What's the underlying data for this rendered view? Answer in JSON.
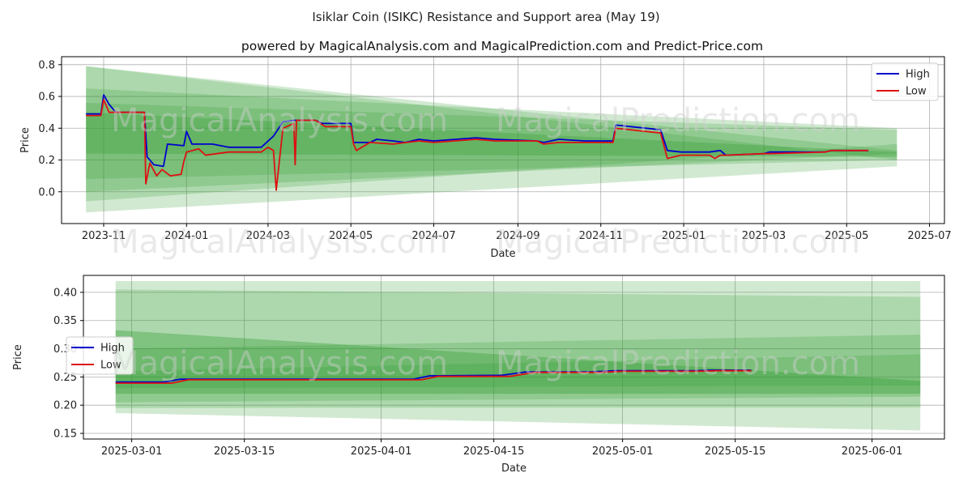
{
  "title": "Isiklar Coin (ISIKC) Resistance and Support area (May 19)",
  "subtitle": "powered by MagicalAnalysis.com and MagicalPrediction.com and Predict-Price.com",
  "watermarks": [
    "MagicalAnalysis.com",
    "MagicalPrediction.com"
  ],
  "colors": {
    "high": "#0000cc",
    "low": "#dd1111",
    "band": "#2e9a2e",
    "grid": "#b0b0b0"
  },
  "chart_data": [
    {
      "type": "line",
      "xlabel": "Date",
      "ylabel": "Price",
      "grid": true,
      "legend_position": "top-right",
      "xlim": [
        "2023-10-01",
        "2025-07-12"
      ],
      "ylim": [
        -0.2,
        0.85
      ],
      "x_ticks": [
        "2023-11",
        "2024-01",
        "2024-03",
        "2024-05",
        "2024-07",
        "2024-09",
        "2024-11",
        "2025-01",
        "2025-03",
        "2025-05",
        "2025-07"
      ],
      "y_ticks": [
        "0.0",
        "0.2",
        "0.4",
        "0.6",
        "0.8"
      ],
      "series": [
        {
          "name": "High",
          "color": "#0000cc",
          "points": [
            [
              "2023-10-19",
              0.49
            ],
            [
              "2023-10-30",
              0.49
            ],
            [
              "2023-11-01",
              0.61
            ],
            [
              "2023-11-05",
              0.55
            ],
            [
              "2023-11-10",
              0.5
            ],
            [
              "2023-12-01",
              0.5
            ],
            [
              "2023-12-03",
              0.22
            ],
            [
              "2023-12-08",
              0.17
            ],
            [
              "2023-12-15",
              0.16
            ],
            [
              "2023-12-18",
              0.3
            ],
            [
              "2023-12-30",
              0.29
            ],
            [
              "2024-01-01",
              0.38
            ],
            [
              "2024-01-05",
              0.3
            ],
            [
              "2024-01-20",
              0.3
            ],
            [
              "2024-02-01",
              0.28
            ],
            [
              "2024-02-25",
              0.28
            ],
            [
              "2024-03-05",
              0.35
            ],
            [
              "2024-03-12",
              0.44
            ],
            [
              "2024-03-20",
              0.45
            ],
            [
              "2024-04-05",
              0.45
            ],
            [
              "2024-04-10",
              0.43
            ],
            [
              "2024-05-01",
              0.43
            ],
            [
              "2024-05-03",
              0.31
            ],
            [
              "2024-05-15",
              0.31
            ],
            [
              "2024-05-20",
              0.33
            ],
            [
              "2024-06-01",
              0.32
            ],
            [
              "2024-06-10",
              0.31
            ],
            [
              "2024-06-20",
              0.33
            ],
            [
              "2024-07-01",
              0.32
            ],
            [
              "2024-08-01",
              0.34
            ],
            [
              "2024-08-15",
              0.33
            ],
            [
              "2024-09-15",
              0.32
            ],
            [
              "2024-09-20",
              0.31
            ],
            [
              "2024-10-01",
              0.33
            ],
            [
              "2024-10-20",
              0.32
            ],
            [
              "2024-11-10",
              0.32
            ],
            [
              "2024-11-12",
              0.42
            ],
            [
              "2024-12-15",
              0.39
            ],
            [
              "2024-12-20",
              0.26
            ],
            [
              "2024-12-30",
              0.25
            ],
            [
              "2025-01-20",
              0.25
            ],
            [
              "2025-01-28",
              0.26
            ],
            [
              "2025-02-01",
              0.23
            ],
            [
              "2025-03-01",
              0.24
            ],
            [
              "2025-03-05",
              0.25
            ],
            [
              "2025-04-15",
              0.25
            ],
            [
              "2025-04-20",
              0.26
            ],
            [
              "2025-05-17",
              0.26
            ]
          ]
        },
        {
          "name": "Low",
          "color": "#dd1111",
          "points": [
            [
              "2023-10-19",
              0.48
            ],
            [
              "2023-10-30",
              0.48
            ],
            [
              "2023-11-01",
              0.58
            ],
            [
              "2023-11-05",
              0.5
            ],
            [
              "2023-12-01",
              0.5
            ],
            [
              "2023-12-02",
              0.05
            ],
            [
              "2023-12-05",
              0.18
            ],
            [
              "2023-12-10",
              0.1
            ],
            [
              "2023-12-14",
              0.14
            ],
            [
              "2023-12-20",
              0.1
            ],
            [
              "2023-12-28",
              0.11
            ],
            [
              "2023-12-30",
              0.19
            ],
            [
              "2024-01-01",
              0.25
            ],
            [
              "2024-01-10",
              0.27
            ],
            [
              "2024-01-15",
              0.23
            ],
            [
              "2024-02-01",
              0.25
            ],
            [
              "2024-02-25",
              0.25
            ],
            [
              "2024-03-01",
              0.28
            ],
            [
              "2024-03-05",
              0.26
            ],
            [
              "2024-03-07",
              0.01
            ],
            [
              "2024-03-12",
              0.4
            ],
            [
              "2024-03-20",
              0.43
            ],
            [
              "2024-03-21",
              0.17
            ],
            [
              "2024-03-22",
              0.45
            ],
            [
              "2024-04-05",
              0.45
            ],
            [
              "2024-04-12",
              0.41
            ],
            [
              "2024-05-01",
              0.41
            ],
            [
              "2024-05-03",
              0.3
            ],
            [
              "2024-05-05",
              0.26
            ],
            [
              "2024-05-15",
              0.31
            ],
            [
              "2024-06-01",
              0.3
            ],
            [
              "2024-06-20",
              0.32
            ],
            [
              "2024-07-01",
              0.31
            ],
            [
              "2024-08-01",
              0.33
            ],
            [
              "2024-08-15",
              0.32
            ],
            [
              "2024-09-15",
              0.32
            ],
            [
              "2024-09-20",
              0.3
            ],
            [
              "2024-10-01",
              0.31
            ],
            [
              "2024-11-10",
              0.31
            ],
            [
              "2024-11-12",
              0.4
            ],
            [
              "2024-12-15",
              0.37
            ],
            [
              "2024-12-20",
              0.21
            ],
            [
              "2024-12-30",
              0.23
            ],
            [
              "2025-01-20",
              0.23
            ],
            [
              "2025-01-24",
              0.21
            ],
            [
              "2025-01-28",
              0.23
            ],
            [
              "2025-02-01",
              0.23
            ],
            [
              "2025-03-01",
              0.24
            ],
            [
              "2025-03-05",
              0.24
            ],
            [
              "2025-04-15",
              0.25
            ],
            [
              "2025-04-20",
              0.26
            ],
            [
              "2025-05-17",
              0.26
            ]
          ]
        }
      ],
      "bands": [
        {
          "x": [
            "2023-10-19",
            "2025-06-07"
          ],
          "top": [
            0.79,
            0.26
          ],
          "bottom": [
            -0.13,
            0.16
          ],
          "opacity": 0.22
        },
        {
          "x": [
            "2023-10-19",
            "2025-06-07"
          ],
          "top": [
            0.79,
            0.2
          ],
          "bottom": [
            -0.06,
            0.3
          ],
          "opacity": 0.22
        },
        {
          "x": [
            "2023-10-19",
            "2025-06-07"
          ],
          "top": [
            0.65,
            0.4
          ],
          "bottom": [
            0.0,
            0.24
          ],
          "opacity": 0.22
        },
        {
          "x": [
            "2023-10-19",
            "2025-06-07"
          ],
          "top": [
            0.56,
            0.39
          ],
          "bottom": [
            0.08,
            0.2
          ],
          "opacity": 0.22
        },
        {
          "x": [
            "2023-10-19",
            "2025-06-07"
          ],
          "top": [
            0.5,
            0.25
          ],
          "bottom": [
            0.24,
            0.22
          ],
          "opacity": 0.3
        }
      ]
    },
    {
      "type": "line",
      "xlabel": "Date",
      "ylabel": "Price",
      "grid": true,
      "legend_position": "center-left",
      "xlim": [
        "2025-02-23",
        "2025-06-10"
      ],
      "ylim": [
        0.14,
        0.43
      ],
      "x_ticks": [
        "2025-03-01",
        "2025-03-15",
        "2025-04-01",
        "2025-04-15",
        "2025-05-01",
        "2025-05-15",
        "2025-06-01"
      ],
      "y_ticks": [
        "0.15",
        "0.20",
        "0.25",
        "0.30",
        "0.35",
        "0.40"
      ],
      "series": [
        {
          "name": "High",
          "color": "#0000cc",
          "points": [
            [
              "2025-02-27",
              0.241
            ],
            [
              "2025-03-05",
              0.241
            ],
            [
              "2025-03-07",
              0.246
            ],
            [
              "2025-04-05",
              0.246
            ],
            [
              "2025-04-07",
              0.252
            ],
            [
              "2025-04-16",
              0.253
            ],
            [
              "2025-04-19",
              0.259
            ],
            [
              "2025-04-27",
              0.259
            ],
            [
              "2025-04-30",
              0.261
            ],
            [
              "2025-05-10",
              0.261
            ],
            [
              "2025-05-12",
              0.262
            ],
            [
              "2025-05-17",
              0.262
            ]
          ]
        },
        {
          "name": "Low",
          "color": "#dd1111",
          "points": [
            [
              "2025-02-27",
              0.239
            ],
            [
              "2025-03-06",
              0.239
            ],
            [
              "2025-03-08",
              0.245
            ],
            [
              "2025-04-06",
              0.245
            ],
            [
              "2025-04-08",
              0.251
            ],
            [
              "2025-04-17",
              0.251
            ],
            [
              "2025-04-20",
              0.258
            ],
            [
              "2025-04-28",
              0.258
            ],
            [
              "2025-05-01",
              0.26
            ],
            [
              "2025-05-10",
              0.26
            ],
            [
              "2025-05-13",
              0.261
            ],
            [
              "2025-05-17",
              0.261
            ]
          ]
        }
      ],
      "bands": [
        {
          "x": [
            "2025-02-27",
            "2025-06-07"
          ],
          "top": [
            0.42,
            0.42
          ],
          "bottom": [
            0.186,
            0.155
          ],
          "opacity": 0.22
        },
        {
          "x": [
            "2025-02-27",
            "2025-06-07"
          ],
          "top": [
            0.405,
            0.392
          ],
          "bottom": [
            0.195,
            0.196
          ],
          "opacity": 0.22
        },
        {
          "x": [
            "2025-02-27",
            "2025-06-07"
          ],
          "top": [
            0.3,
            0.325
          ],
          "bottom": [
            0.205,
            0.215
          ],
          "opacity": 0.22
        },
        {
          "x": [
            "2025-02-27",
            "2025-06-07"
          ],
          "top": [
            0.333,
            0.243
          ],
          "bottom": [
            0.22,
            0.22
          ],
          "opacity": 0.35
        },
        {
          "x": [
            "2025-02-27",
            "2025-06-07"
          ],
          "top": [
            0.26,
            0.29
          ],
          "bottom": [
            0.23,
            0.235
          ],
          "opacity": 0.22
        }
      ]
    }
  ]
}
